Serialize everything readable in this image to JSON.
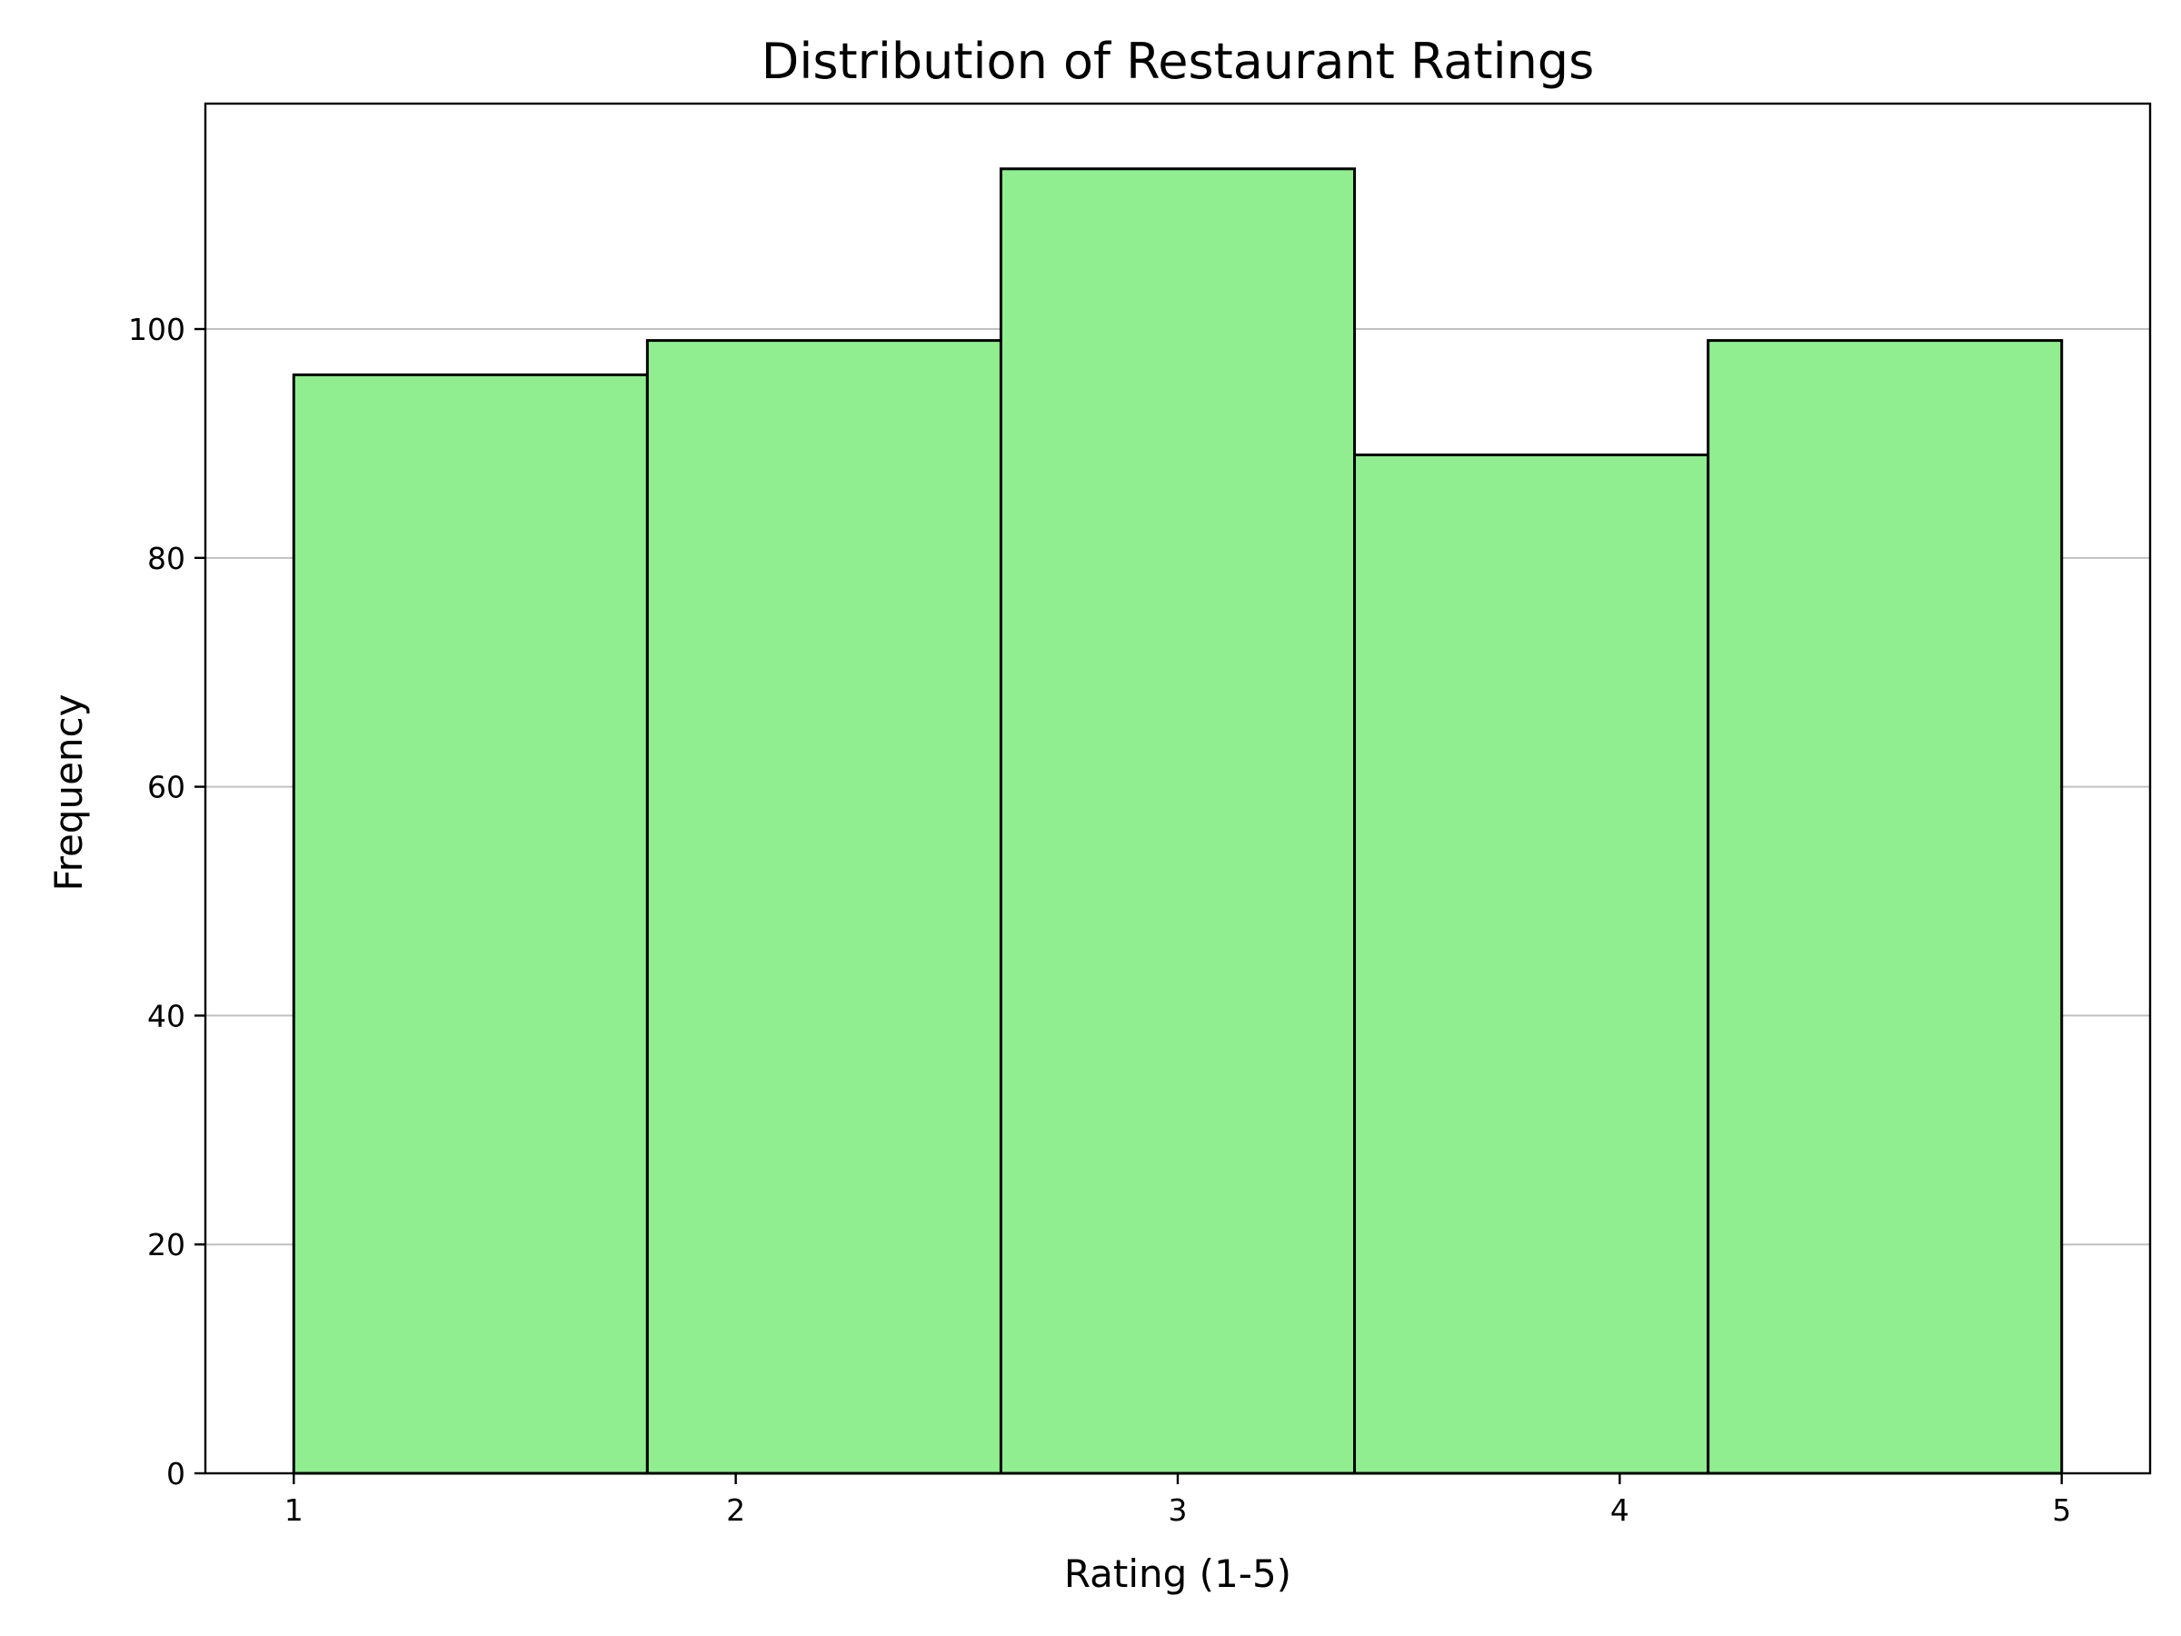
{
  "chart_data": {
    "type": "bar",
    "title": "Distribution of Restaurant Ratings",
    "xlabel": "Rating (1-5)",
    "ylabel": "Frequency",
    "bin_edges": [
      1.0,
      1.8,
      2.6,
      3.4,
      4.2,
      5.0
    ],
    "values": [
      96,
      99,
      114,
      89,
      99
    ],
    "xlim": [
      0.8,
      5.2
    ],
    "ylim": [
      0,
      119.7
    ],
    "x_ticks": [
      1,
      2,
      3,
      4,
      5
    ],
    "y_ticks": [
      0,
      20,
      40,
      60,
      80,
      100
    ],
    "grid": "y-axis only",
    "legend": "none",
    "colors": {
      "bar_fill": "#90ee90",
      "bar_edge": "#000000",
      "grid": "#c0c0c0"
    }
  }
}
